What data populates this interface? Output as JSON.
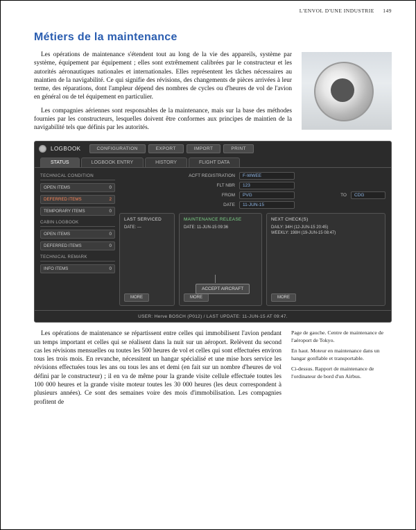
{
  "header": {
    "section": "L'ENVOL D'UNE INDUSTRIE",
    "page": "149"
  },
  "title": "Métiers de la maintenance",
  "intro": {
    "p1": "Les opérations de maintenance s'étendent tout au long de la vie des appareils, système par système, équipement par équipement ; elles sont extrêmement calibrées par le constructeur et les autorités aéronautiques nationales et internationales. Elles représentent les tâches nécessaires au maintien de la navigabilité. Ce qui signifie des révisions, des changements de pièces arrivées à leur terme, des réparations, dont l'ampleur dépend des nombres de cycles ou d'heures de vol de l'avion en général ou de tel équipement en particulier.",
    "p2": "Les compagnies aériennes sont responsables de la maintenance, mais sur la base des méthodes fournies par les constructeurs, lesquelles doivent être conformes aux principes de maintien de la navigabilité tels que définis par les autorités."
  },
  "logbook": {
    "title": "LOGBOOK",
    "topButtons": [
      "CONFIGURATION",
      "EXPORT",
      "IMPORT",
      "PRINT"
    ],
    "tabs": [
      "STATUS",
      "LOGBOOK ENTRY",
      "HISTORY",
      "FLIGHT DATA"
    ],
    "activeTab": 0,
    "form": {
      "reg_label": "ACFT REGISTRATION",
      "reg": "F-WWEE",
      "flt_label": "FLT NBR",
      "flt": "123",
      "from_label": "FROM",
      "from": "PVG",
      "to_label": "TO",
      "to": "CDG",
      "date_label": "DATE",
      "date": "11-JUN-15"
    },
    "side": {
      "g1": "TECHNICAL CONDITION",
      "g1_items": [
        {
          "l": "OPEN ITEMS",
          "v": "0"
        },
        {
          "l": "DEFERRED ITEMS",
          "v": "2",
          "red": true
        },
        {
          "l": "TEMPORARY ITEMS",
          "v": "0"
        }
      ],
      "g2": "CABIN LOGBOOK",
      "g2_items": [
        {
          "l": "OPEN ITEMS",
          "v": "0"
        },
        {
          "l": "DEFERRED ITEMS",
          "v": "0"
        }
      ],
      "g3": "TECHNICAL REMARK",
      "g3_items": [
        {
          "l": "INFO ITEMS",
          "v": "0"
        }
      ]
    },
    "panels": {
      "last": {
        "hdr": "LAST SERVICED",
        "line": "DATE: ---",
        "more": "MORE"
      },
      "release": {
        "hdr": "MAINTENANCE RELEASE",
        "line": "DATE: 11-JUN-15  09:36",
        "more": "MORE"
      },
      "next": {
        "hdr": "NEXT CHECK(S)",
        "l1": "DAILY:   34H (12-JUN-15  20:45)",
        "l2": "WEEKLY: 198H (19-JUN-15  08:47)",
        "more": "MORE"
      }
    },
    "accept": "ACCEPT AIRCRAFT",
    "footer": "USER: Herve BOSCH (P012) / LAST UPDATE: 11-JUN-15 AT 09:47."
  },
  "body": {
    "p1": "Les opérations de maintenance se répartissent entre celles qui immobilisent l'avion pendant un temps important et celles qui se réalisent dans la nuit sur un aéroport. Relèvent du second cas les révisions mensuelles ou toutes les 500 heures de vol et celles qui sont effectuées environ tous les trois mois. En revanche, nécessitent un hangar spécialisé et une mise hors service les révisions effectuées tous les ans ou tous les ans et demi (en fait sur un nombre d'heures de vol défini par le constructeur) ; il en va de même pour la grande visite cellule effectuée toutes les 100 000 heures et la grande visite moteur toutes les 30 000 heures (les deux correspondent à plusieurs années). Ce sont des semaines voire des mois d'immobilisation. Les compagnies profitent de"
  },
  "captions": {
    "c1": "Page de gauche. Centre de maintenance de l'aéroport de Tokyo.",
    "c2": "En haut. Moteur en maintenance dans un hangar gonflable et transportable.",
    "c3": "Ci-dessus. Rapport de maintenance de l'ordinateur de bord d'un Airbus."
  }
}
